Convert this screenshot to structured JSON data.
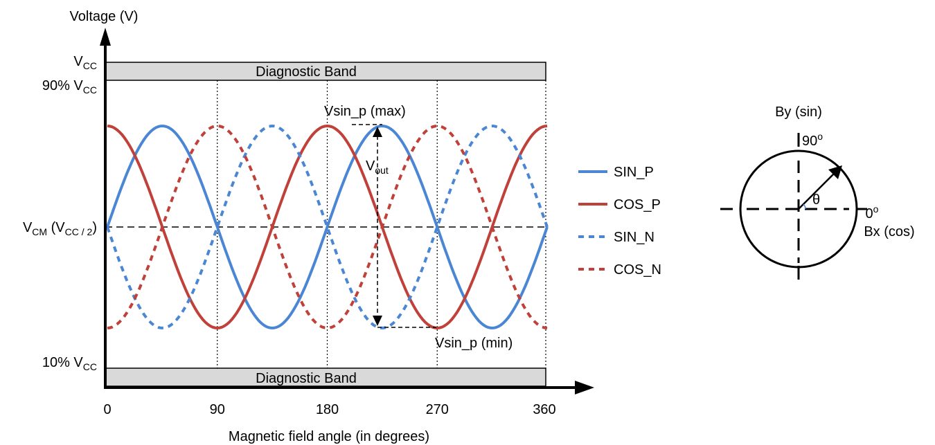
{
  "chart_data": {
    "type": "line",
    "ylabel": "Voltage (V)",
    "xlabel": "Magnetic field angle (in degrees)",
    "x_ticks": [
      "0",
      "90",
      "180",
      "270",
      "360"
    ],
    "xlim": [
      0,
      360
    ],
    "y_levels": {
      "vcc": {
        "main": "V",
        "sub": "CC"
      },
      "p90": {
        "main": "90% V",
        "sub": "CC"
      },
      "vcm": {
        "main": "V",
        "sub1": "CM",
        "mid": " (V",
        "sub2": "CC / 2",
        "end": ")"
      },
      "p10": {
        "main": "10% V",
        "sub": "CC"
      }
    },
    "bands": [
      "Diagnostic Band",
      "Diagnostic Band"
    ],
    "grid_vertical": true,
    "period_deg": 180,
    "amplitude": "normalized",
    "series": [
      {
        "name": "SIN_P",
        "phase_deg": 0,
        "color": "#4a86d4",
        "style": "solid"
      },
      {
        "name": "COS_P",
        "phase_deg": 90,
        "color": "#c0403a",
        "style": "solid"
      },
      {
        "name": "SIN_N",
        "phase_deg": 180,
        "color": "#4a86d4",
        "style": "dashed"
      },
      {
        "name": "COS_N",
        "phase_deg": 270,
        "color": "#c0403a",
        "style": "dashed"
      }
    ],
    "annotations": {
      "max": "Vsin_p (max)",
      "min": "Vsin_p (min)",
      "vout_main": "V",
      "vout_sub": "out"
    }
  },
  "polar": {
    "y_axis": "By (sin)",
    "x_axis": "Bx (cos)",
    "angle_90": "90",
    "angle_0": "0",
    "theta": "θ",
    "deg_mark": "o"
  }
}
